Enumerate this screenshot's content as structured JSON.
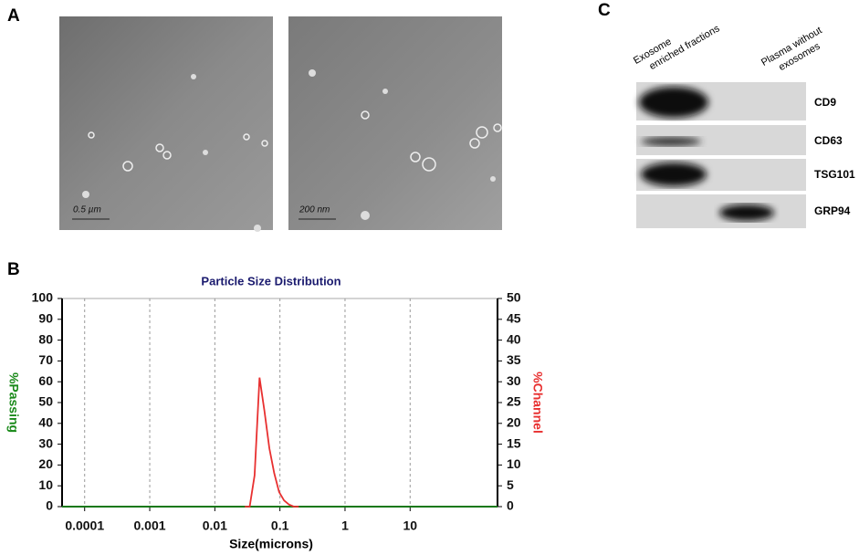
{
  "panels": {
    "a": "A",
    "b": "B",
    "c": "C"
  },
  "micrographs": {
    "scale_left": "0.5 µm",
    "scale_right": "200 nm"
  },
  "blot": {
    "columns": [
      [
        "Exosome",
        "enriched fractions"
      ],
      [
        "Plasma without",
        "exosomes"
      ]
    ],
    "rows": [
      "CD9",
      "CD63",
      "TSG101",
      "GRP94"
    ]
  },
  "chart_data": {
    "type": "line",
    "title": "Particle Size Distribution",
    "xlabel": "Size(microns)",
    "ylabel": "%Passing",
    "y2label": "%Channel",
    "xscale": "log",
    "xlim": [
      4.5e-05,
      220
    ],
    "xticks": [
      0.0001,
      0.001,
      0.01,
      0.1,
      1,
      10
    ],
    "ylim": [
      0,
      100
    ],
    "yticks": [
      0,
      10,
      20,
      30,
      40,
      50,
      60,
      70,
      80,
      90,
      100
    ],
    "y2lim": [
      0,
      50
    ],
    "y2ticks": [
      0,
      5,
      10,
      15,
      20,
      25,
      30,
      35,
      40,
      45,
      50
    ],
    "grid": true,
    "series": [
      {
        "color": "#1a8a1a",
        "x": [
          4.5e-05,
          220
        ],
        "values": [
          0,
          0
        ]
      },
      {
        "color": "#e83030",
        "axis": "y2",
        "x": [
          0.0289,
          0.0343,
          0.0408,
          0.0486,
          0.0578,
          0.0688,
          0.0818,
          0.0972,
          0.1156,
          0.1375,
          0.1635,
          0.1945
        ],
        "values": [
          0,
          0,
          7.5,
          31,
          23,
          14,
          8,
          3.5,
          1.5,
          0.5,
          0,
          0
        ]
      }
    ]
  }
}
